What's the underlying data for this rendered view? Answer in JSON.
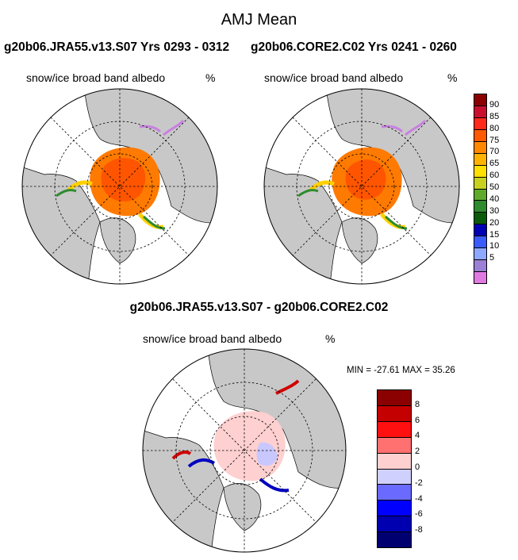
{
  "figure": {
    "title": "AMJ Mean",
    "left_panel_title": "g20b06.JRA55.v13.S07  Yrs 0293 - 0312",
    "right_panel_title": "g20b06.CORE2.C02  Yrs 0241 - 0260",
    "diff_title": "g20b06.JRA55.v13.S07 - g20b06.CORE2.C02"
  },
  "panels": {
    "left": {
      "variable": "snow/ice broad band albedo",
      "units": "%"
    },
    "right": {
      "variable": "snow/ice broad band albedo",
      "units": "%"
    },
    "diff": {
      "variable": "snow/ice broad band albedo",
      "units": "%",
      "minmax": "MIN = -27.61 MAX =  35.26"
    }
  },
  "colorbar_main": {
    "labels": [
      "90",
      "85",
      "80",
      "75",
      "70",
      "65",
      "60",
      "50",
      "40",
      "30",
      "20",
      "15",
      "10",
      "5"
    ],
    "colors": [
      "#8b0000",
      "#c8102e",
      "#ff2a1a",
      "#ff5a00",
      "#ff8800",
      "#ffb300",
      "#ffe000",
      "#c8d21e",
      "#5faa2d",
      "#2e8b2e",
      "#0a5a0a",
      "#0000b4",
      "#3a5cff",
      "#8fa8ff",
      "#9b80d6",
      "#e07ae0"
    ]
  },
  "colorbar_diff": {
    "labels": [
      "8",
      "6",
      "4",
      "2",
      "0",
      "-2",
      "-4",
      "-6",
      "-8"
    ],
    "colors": [
      "#8b0000",
      "#c40000",
      "#ff1010",
      "#ff7070",
      "#ffd0d0",
      "#d0d0ff",
      "#6a6aff",
      "#0000ff",
      "#0000b0",
      "#000070"
    ]
  }
}
